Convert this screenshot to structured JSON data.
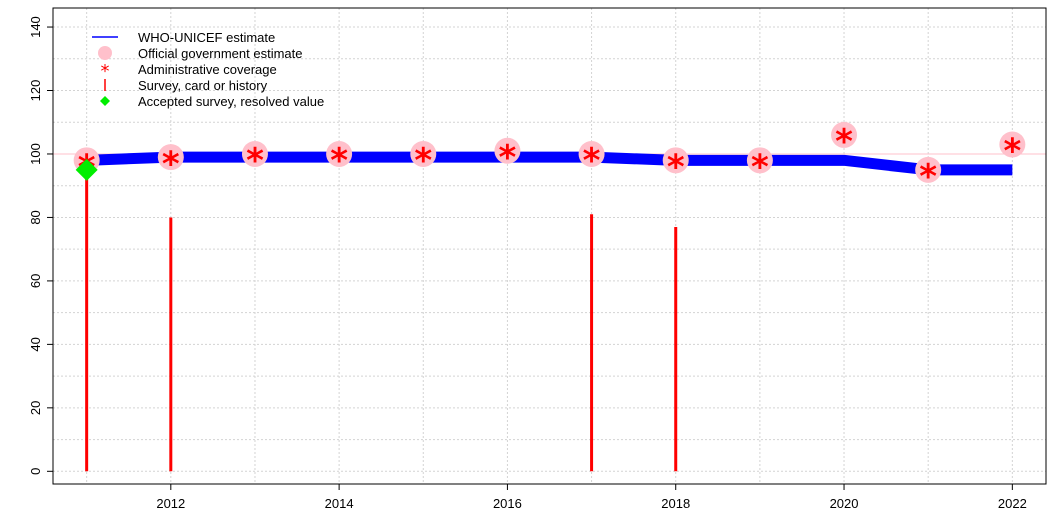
{
  "chart_data": {
    "type": "line",
    "title": "",
    "xlabel": "",
    "ylabel": "",
    "xlim": [
      2010.6,
      2022.4
    ],
    "ylim": [
      -4,
      146
    ],
    "x_ticks": [
      2012,
      2014,
      2016,
      2018,
      2020,
      2022
    ],
    "y_ticks": [
      0,
      20,
      40,
      60,
      80,
      100,
      120,
      140
    ],
    "grid": true,
    "reference_line": 100,
    "legend_position": "top-left",
    "legend": [
      {
        "label": "WHO-UNICEF estimate",
        "marker": "line",
        "color": "#0000ff"
      },
      {
        "label": "Official government estimate",
        "marker": "circle",
        "color": "#ffc0cb"
      },
      {
        "label": "Administrative coverage",
        "marker": "asterisk",
        "color": "#ff0000"
      },
      {
        "label": "Survey, card or history",
        "marker": "vbar",
        "color": "#ff0000"
      },
      {
        "label": "Accepted survey, resolved value",
        "marker": "diamond",
        "color": "#00ee00"
      }
    ],
    "series": [
      {
        "name": "WHO-UNICEF estimate",
        "color": "#0000ff",
        "x": [
          2011,
          2012,
          2013,
          2014,
          2015,
          2016,
          2017,
          2018,
          2019,
          2020,
          2021,
          2022
        ],
        "y": [
          98,
          99,
          99,
          99,
          99,
          99,
          99,
          98,
          98,
          98,
          95,
          95
        ]
      },
      {
        "name": "Official government estimate",
        "color": "#ffc0cb",
        "x": [
          2011,
          2012,
          2013,
          2014,
          2015,
          2016,
          2017,
          2018,
          2019,
          2020,
          2021,
          2022
        ],
        "y": [
          98,
          99,
          100,
          100,
          100,
          101,
          100,
          98,
          98,
          106,
          95,
          103
        ]
      },
      {
        "name": "Administrative coverage",
        "color": "#ff0000",
        "x": [
          2011,
          2012,
          2013,
          2014,
          2015,
          2016,
          2017,
          2018,
          2019,
          2020,
          2021,
          2022
        ],
        "y": [
          97,
          98,
          99,
          99,
          99,
          100,
          99,
          97,
          97,
          105,
          94,
          102
        ]
      },
      {
        "name": "Survey, card or history",
        "color": "#ff0000",
        "x": [
          2011,
          2012,
          2017,
          2018
        ],
        "y": [
          95,
          80,
          81,
          77
        ]
      },
      {
        "name": "Accepted survey, resolved value",
        "color": "#00ee00",
        "x": [
          2011
        ],
        "y": [
          95
        ]
      }
    ]
  }
}
